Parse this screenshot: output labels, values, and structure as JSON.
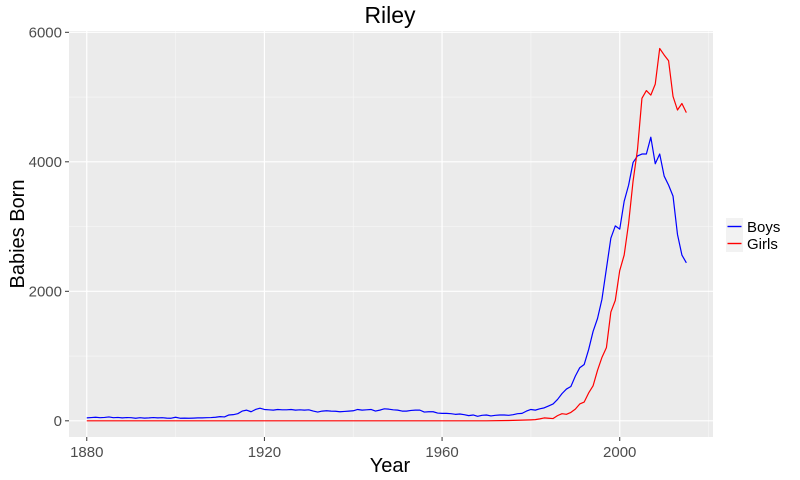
{
  "chart_data": {
    "type": "line",
    "title": "Riley",
    "xlabel": "Year",
    "ylabel": "Babies Born",
    "xlim": [
      1876,
      2021
    ],
    "ylim": [
      -250,
      6020
    ],
    "x_ticks": [
      1880,
      1920,
      1960,
      2000
    ],
    "y_ticks": [
      0,
      2000,
      4000,
      6000
    ],
    "x_tick_labels": [
      "1880",
      "1920",
      "1960",
      "2000"
    ],
    "y_tick_labels": [
      "0",
      "2000",
      "4000",
      "6000"
    ],
    "grid": true,
    "legend_position": "right",
    "series": [
      {
        "name": "Boys",
        "color": "#0000ff",
        "points": [
          [
            1880,
            45
          ],
          [
            1881,
            50
          ],
          [
            1882,
            55
          ],
          [
            1883,
            48
          ],
          [
            1884,
            52
          ],
          [
            1885,
            60
          ],
          [
            1886,
            48
          ],
          [
            1887,
            52
          ],
          [
            1888,
            45
          ],
          [
            1889,
            50
          ],
          [
            1890,
            48
          ],
          [
            1891,
            40
          ],
          [
            1892,
            48
          ],
          [
            1893,
            42
          ],
          [
            1894,
            45
          ],
          [
            1895,
            50
          ],
          [
            1896,
            45
          ],
          [
            1897,
            48
          ],
          [
            1898,
            42
          ],
          [
            1899,
            40
          ],
          [
            1900,
            55
          ],
          [
            1901,
            40
          ],
          [
            1902,
            42
          ],
          [
            1903,
            40
          ],
          [
            1904,
            42
          ],
          [
            1905,
            45
          ],
          [
            1906,
            45
          ],
          [
            1907,
            48
          ],
          [
            1908,
            50
          ],
          [
            1909,
            55
          ],
          [
            1910,
            65
          ],
          [
            1911,
            60
          ],
          [
            1912,
            90
          ],
          [
            1913,
            95
          ],
          [
            1914,
            110
          ],
          [
            1915,
            150
          ],
          [
            1916,
            165
          ],
          [
            1917,
            140
          ],
          [
            1918,
            175
          ],
          [
            1919,
            195
          ],
          [
            1920,
            175
          ],
          [
            1921,
            170
          ],
          [
            1922,
            165
          ],
          [
            1923,
            175
          ],
          [
            1924,
            170
          ],
          [
            1925,
            170
          ],
          [
            1926,
            175
          ],
          [
            1927,
            165
          ],
          [
            1928,
            170
          ],
          [
            1929,
            165
          ],
          [
            1930,
            170
          ],
          [
            1931,
            150
          ],
          [
            1932,
            135
          ],
          [
            1933,
            150
          ],
          [
            1934,
            155
          ],
          [
            1935,
            150
          ],
          [
            1936,
            148
          ],
          [
            1937,
            140
          ],
          [
            1938,
            145
          ],
          [
            1939,
            150
          ],
          [
            1940,
            155
          ],
          [
            1941,
            175
          ],
          [
            1942,
            165
          ],
          [
            1943,
            170
          ],
          [
            1944,
            175
          ],
          [
            1945,
            150
          ],
          [
            1946,
            165
          ],
          [
            1947,
            185
          ],
          [
            1948,
            180
          ],
          [
            1949,
            170
          ],
          [
            1950,
            165
          ],
          [
            1951,
            150
          ],
          [
            1952,
            150
          ],
          [
            1953,
            160
          ],
          [
            1954,
            165
          ],
          [
            1955,
            165
          ],
          [
            1956,
            135
          ],
          [
            1957,
            140
          ],
          [
            1958,
            140
          ],
          [
            1959,
            120
          ],
          [
            1960,
            115
          ],
          [
            1961,
            115
          ],
          [
            1962,
            110
          ],
          [
            1963,
            100
          ],
          [
            1964,
            105
          ],
          [
            1965,
            95
          ],
          [
            1966,
            80
          ],
          [
            1967,
            90
          ],
          [
            1968,
            70
          ],
          [
            1969,
            85
          ],
          [
            1970,
            90
          ],
          [
            1971,
            75
          ],
          [
            1972,
            85
          ],
          [
            1973,
            90
          ],
          [
            1974,
            90
          ],
          [
            1975,
            85
          ],
          [
            1976,
            95
          ],
          [
            1977,
            110
          ],
          [
            1978,
            115
          ],
          [
            1979,
            150
          ],
          [
            1980,
            175
          ],
          [
            1981,
            165
          ],
          [
            1982,
            185
          ],
          [
            1983,
            200
          ],
          [
            1984,
            230
          ],
          [
            1985,
            260
          ],
          [
            1986,
            330
          ],
          [
            1987,
            420
          ],
          [
            1988,
            490
          ],
          [
            1989,
            530
          ],
          [
            1990,
            690
          ],
          [
            1991,
            820
          ],
          [
            1992,
            870
          ],
          [
            1993,
            1100
          ],
          [
            1994,
            1380
          ],
          [
            1995,
            1580
          ],
          [
            1996,
            1880
          ],
          [
            1997,
            2350
          ],
          [
            1998,
            2820
          ],
          [
            1999,
            3010
          ],
          [
            2000,
            2960
          ],
          [
            2001,
            3390
          ],
          [
            2002,
            3640
          ],
          [
            2003,
            3990
          ],
          [
            2004,
            4090
          ],
          [
            2005,
            4120
          ],
          [
            2006,
            4120
          ],
          [
            2007,
            4380
          ],
          [
            2008,
            3970
          ],
          [
            2009,
            4120
          ],
          [
            2010,
            3780
          ],
          [
            2011,
            3640
          ],
          [
            2012,
            3470
          ],
          [
            2013,
            2880
          ],
          [
            2014,
            2560
          ],
          [
            2015,
            2440
          ]
        ]
      },
      {
        "name": "Girls",
        "color": "#ff0000",
        "points": [
          [
            1880,
            0
          ],
          [
            1890,
            0
          ],
          [
            1900,
            0
          ],
          [
            1910,
            0
          ],
          [
            1920,
            0
          ],
          [
            1930,
            0
          ],
          [
            1940,
            0
          ],
          [
            1950,
            0
          ],
          [
            1960,
            0
          ],
          [
            1970,
            0
          ],
          [
            1975,
            5
          ],
          [
            1978,
            10
          ],
          [
            1980,
            15
          ],
          [
            1981,
            18
          ],
          [
            1982,
            30
          ],
          [
            1983,
            45
          ],
          [
            1984,
            40
          ],
          [
            1985,
            35
          ],
          [
            1986,
            80
          ],
          [
            1987,
            110
          ],
          [
            1988,
            100
          ],
          [
            1989,
            130
          ],
          [
            1990,
            180
          ],
          [
            1991,
            260
          ],
          [
            1992,
            290
          ],
          [
            1993,
            430
          ],
          [
            1994,
            540
          ],
          [
            1995,
            780
          ],
          [
            1996,
            980
          ],
          [
            1997,
            1130
          ],
          [
            1998,
            1680
          ],
          [
            1999,
            1860
          ],
          [
            2000,
            2320
          ],
          [
            2001,
            2560
          ],
          [
            2002,
            3050
          ],
          [
            2003,
            3700
          ],
          [
            2004,
            4190
          ],
          [
            2005,
            4980
          ],
          [
            2006,
            5100
          ],
          [
            2007,
            5030
          ],
          [
            2008,
            5200
          ],
          [
            2009,
            5750
          ],
          [
            2010,
            5650
          ],
          [
            2011,
            5560
          ],
          [
            2012,
            5010
          ],
          [
            2013,
            4800
          ],
          [
            2014,
            4900
          ],
          [
            2015,
            4760
          ]
        ]
      }
    ]
  }
}
